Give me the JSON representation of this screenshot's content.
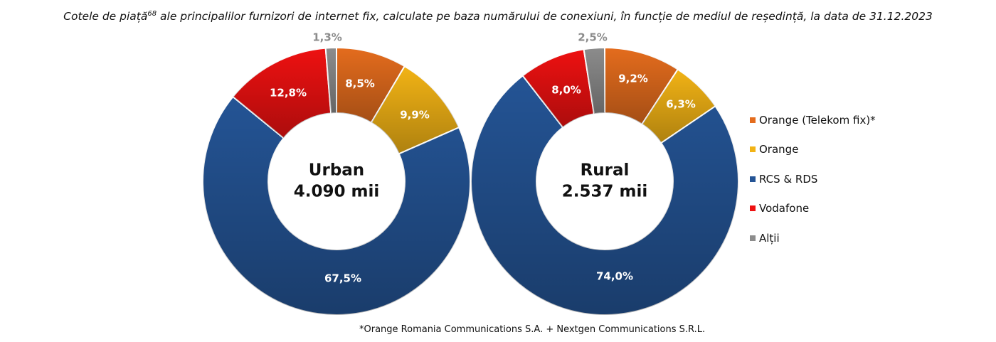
{
  "title": {
    "text_before": "Cotele de piață",
    "superscript": "68",
    "text_after": " ale principalilor furnizori de internet fix, calculate pe baza numărului de conexiuni, în funcție de mediul de reședință, la data de 31.12.2023"
  },
  "footnote": "*Orange Romania Communications S.A. + Nextgen Communications S.R.L.",
  "legend": {
    "items": [
      {
        "label": "Orange (Telekom fix)*",
        "color": "#e46c1d"
      },
      {
        "label": "Orange",
        "color": "#f2b315"
      },
      {
        "label": "RCS & RDS",
        "color": "#245495"
      },
      {
        "label": "Vodafone",
        "color": "#ee1111"
      },
      {
        "label": "Alții",
        "color": "#8c8c8c"
      }
    ]
  },
  "chart_data": [
    {
      "type": "pie",
      "variant": "donut",
      "center_label": [
        "Urban",
        "4.090 mii"
      ],
      "categories": [
        "Orange (Telekom fix)*",
        "Orange",
        "RCS & RDS",
        "Vodafone",
        "Alții"
      ],
      "values": [
        8.5,
        9.9,
        67.5,
        12.8,
        1.3
      ],
      "data_labels": [
        "8,5%",
        "9,9%",
        "67,5%",
        "12,8%",
        "1,3%"
      ],
      "colors": [
        "#e46c1d",
        "#f2b315",
        "#245495",
        "#ee1111",
        "#8c8c8c"
      ],
      "label_colors": [
        "#ffffff",
        "#ffffff",
        "#ffffff",
        "#ffffff",
        "#8c8c8c"
      ],
      "legend": "right"
    },
    {
      "type": "pie",
      "variant": "donut",
      "center_label": [
        "Rural",
        "2.537 mii"
      ],
      "categories": [
        "Orange (Telekom fix)*",
        "Orange",
        "RCS & RDS",
        "Vodafone",
        "Alții"
      ],
      "values": [
        9.2,
        6.3,
        74.0,
        8.0,
        2.5
      ],
      "data_labels": [
        "9,2%",
        "6,3%",
        "74,0%",
        "8,0%",
        "2,5%"
      ],
      "colors": [
        "#e46c1d",
        "#f2b315",
        "#245495",
        "#ee1111",
        "#8c8c8c"
      ],
      "label_colors": [
        "#ffffff",
        "#ffffff",
        "#ffffff",
        "#ffffff",
        "#8c8c8c"
      ],
      "legend": "right"
    }
  ]
}
